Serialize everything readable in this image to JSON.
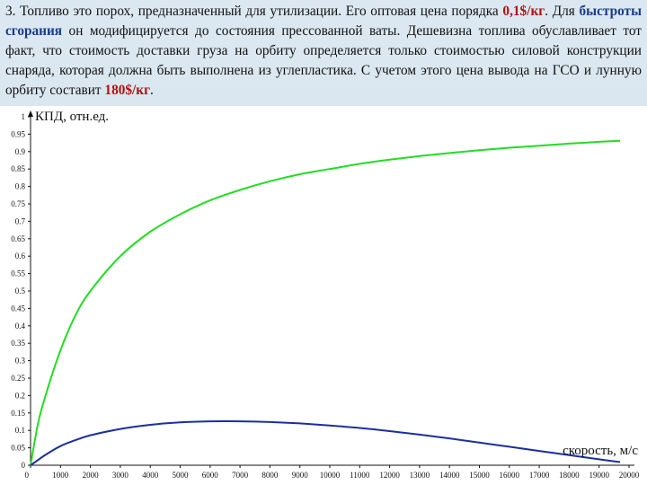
{
  "paragraph": {
    "t1": "3. Топливо это порох, предназначенный для утилизации. Его оптовая цена порядка ",
    "price_fuel": "0,1$/кг",
    "t2": ". Для ",
    "speed_burn": "быстроты сгорания",
    "t3": " он модифицируется до состояния прессованной ваты. Дешевизна топлива обуславливает тот факт, что стоимость доставки груза на орбиту определяется только стоимостью силовой конструкции снаряда, которая должна быть выполнена из углепластика. С учетом этого цена вывода на ГСО и лунную орбиту составит ",
    "price_orbit": "180$/кг",
    "t4": "."
  },
  "colors": {
    "green_series": "#22dd22",
    "blue_series": "#1a2fa0",
    "highlight_blue": "#1a3a8a",
    "highlight_red": "#b01010"
  },
  "chart_data": {
    "type": "line",
    "title": "",
    "xlabel": "скорость, м/с",
    "ylabel": "КПД, отн.ед.",
    "xlim": [
      0,
      20000
    ],
    "ylim": [
      0,
      1
    ],
    "xticks": [
      "0",
      "1000",
      "2000",
      "3000",
      "4000",
      "5000",
      "6000",
      "7000",
      "8000",
      "9000",
      "10000",
      "11000",
      "12000",
      "13000",
      "14000",
      "15000",
      "16000",
      "17000",
      "18000",
      "19000",
      "20000"
    ],
    "yticks": [
      "0",
      "0.05",
      "0.1",
      "0.15",
      "0.2",
      "0.25",
      "0.3",
      "0.35",
      "0.4",
      "0.45",
      "0.5",
      "0.55",
      "0.6",
      "0.65",
      "0.7",
      "0.75",
      "0.8",
      "0.85",
      "0.9",
      "0.95",
      "1"
    ],
    "grid": false,
    "series": [
      {
        "color": "#22dd22",
        "x": [
          0,
          250,
          500,
          1000,
          1500,
          2000,
          3000,
          4000,
          5000,
          6000,
          7000,
          8000,
          9000,
          10000,
          11000,
          12000,
          13000,
          14000,
          15000,
          16000,
          17000,
          18000,
          19000,
          19700
        ],
        "y": [
          0,
          0.12,
          0.2,
          0.33,
          0.43,
          0.5,
          0.6,
          0.67,
          0.72,
          0.76,
          0.79,
          0.815,
          0.835,
          0.85,
          0.865,
          0.877,
          0.887,
          0.896,
          0.904,
          0.911,
          0.917,
          0.923,
          0.928,
          0.931
        ]
      },
      {
        "color": "#1a2fa0",
        "x": [
          0,
          250,
          500,
          1000,
          1500,
          2000,
          3000,
          4000,
          5000,
          6000,
          7000,
          8000,
          9000,
          10000,
          11000,
          12000,
          13000,
          14000,
          15000,
          16000,
          17000,
          18000,
          19000,
          19700
        ],
        "y": [
          0,
          0.015,
          0.03,
          0.055,
          0.072,
          0.086,
          0.104,
          0.116,
          0.123,
          0.126,
          0.126,
          0.124,
          0.12,
          0.114,
          0.107,
          0.098,
          0.088,
          0.077,
          0.065,
          0.053,
          0.041,
          0.029,
          0.017,
          0.009
        ]
      }
    ]
  }
}
